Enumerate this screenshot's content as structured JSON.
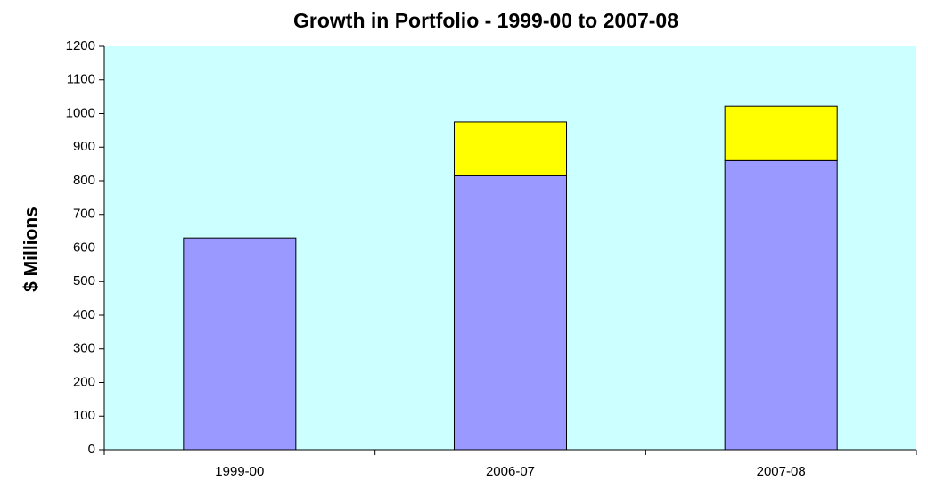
{
  "chart_data": {
    "type": "bar",
    "stacked": true,
    "title": "Growth in Portfolio - 1999-00 to 2007-08",
    "y_label": "$ Millions",
    "categories": [
      "1999-00",
      "2006-07",
      "2007-08"
    ],
    "series": [
      {
        "color": "#9999ff",
        "values": [
          630,
          815,
          860
        ]
      },
      {
        "color": "#ffff00",
        "values": [
          null,
          160,
          162
        ]
      }
    ],
    "ylim": [
      0,
      1200
    ],
    "yticks": [
      0,
      100,
      200,
      300,
      400,
      500,
      600,
      700,
      800,
      900,
      1000,
      1100,
      1200
    ],
    "background": "#ccffff"
  }
}
